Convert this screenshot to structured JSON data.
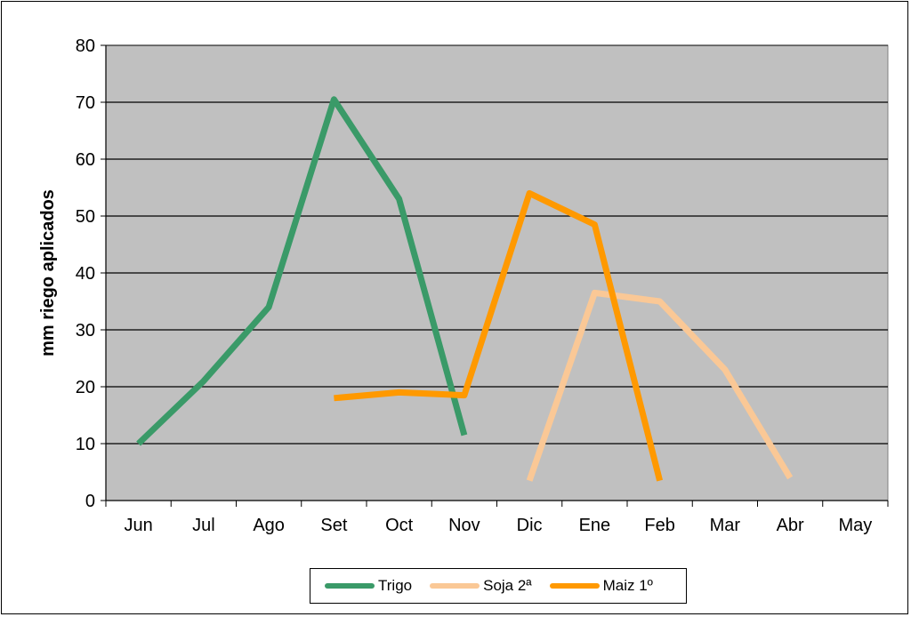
{
  "chart_data": {
    "type": "line",
    "title": "",
    "xlabel": "",
    "ylabel": "mm riego aplicados",
    "categories": [
      "Jun",
      "Jul",
      "Ago",
      "Set",
      "Oct",
      "Nov",
      "Dic",
      "Ene",
      "Feb",
      "Mar",
      "Abr",
      "May"
    ],
    "ylim": [
      0,
      80
    ],
    "yticks": [
      0,
      10,
      20,
      30,
      40,
      50,
      60,
      70,
      80
    ],
    "grid": true,
    "legend_position": "bottom",
    "plot_background": "#c0c0c0",
    "series": [
      {
        "name": "Trigo",
        "color": "#3a9a68",
        "values": [
          10,
          21,
          34,
          70.5,
          53,
          11.5,
          null,
          null,
          null,
          null,
          null,
          null
        ]
      },
      {
        "name": "Soja 2ª",
        "color": "#fac896",
        "values": [
          null,
          null,
          null,
          null,
          null,
          null,
          3.5,
          36.5,
          35,
          23,
          4,
          null
        ]
      },
      {
        "name": "Maiz 1º",
        "color": "#ff9900",
        "values": [
          null,
          null,
          null,
          18,
          19,
          18.5,
          54,
          48.5,
          3.5,
          null,
          null,
          null
        ]
      }
    ]
  }
}
